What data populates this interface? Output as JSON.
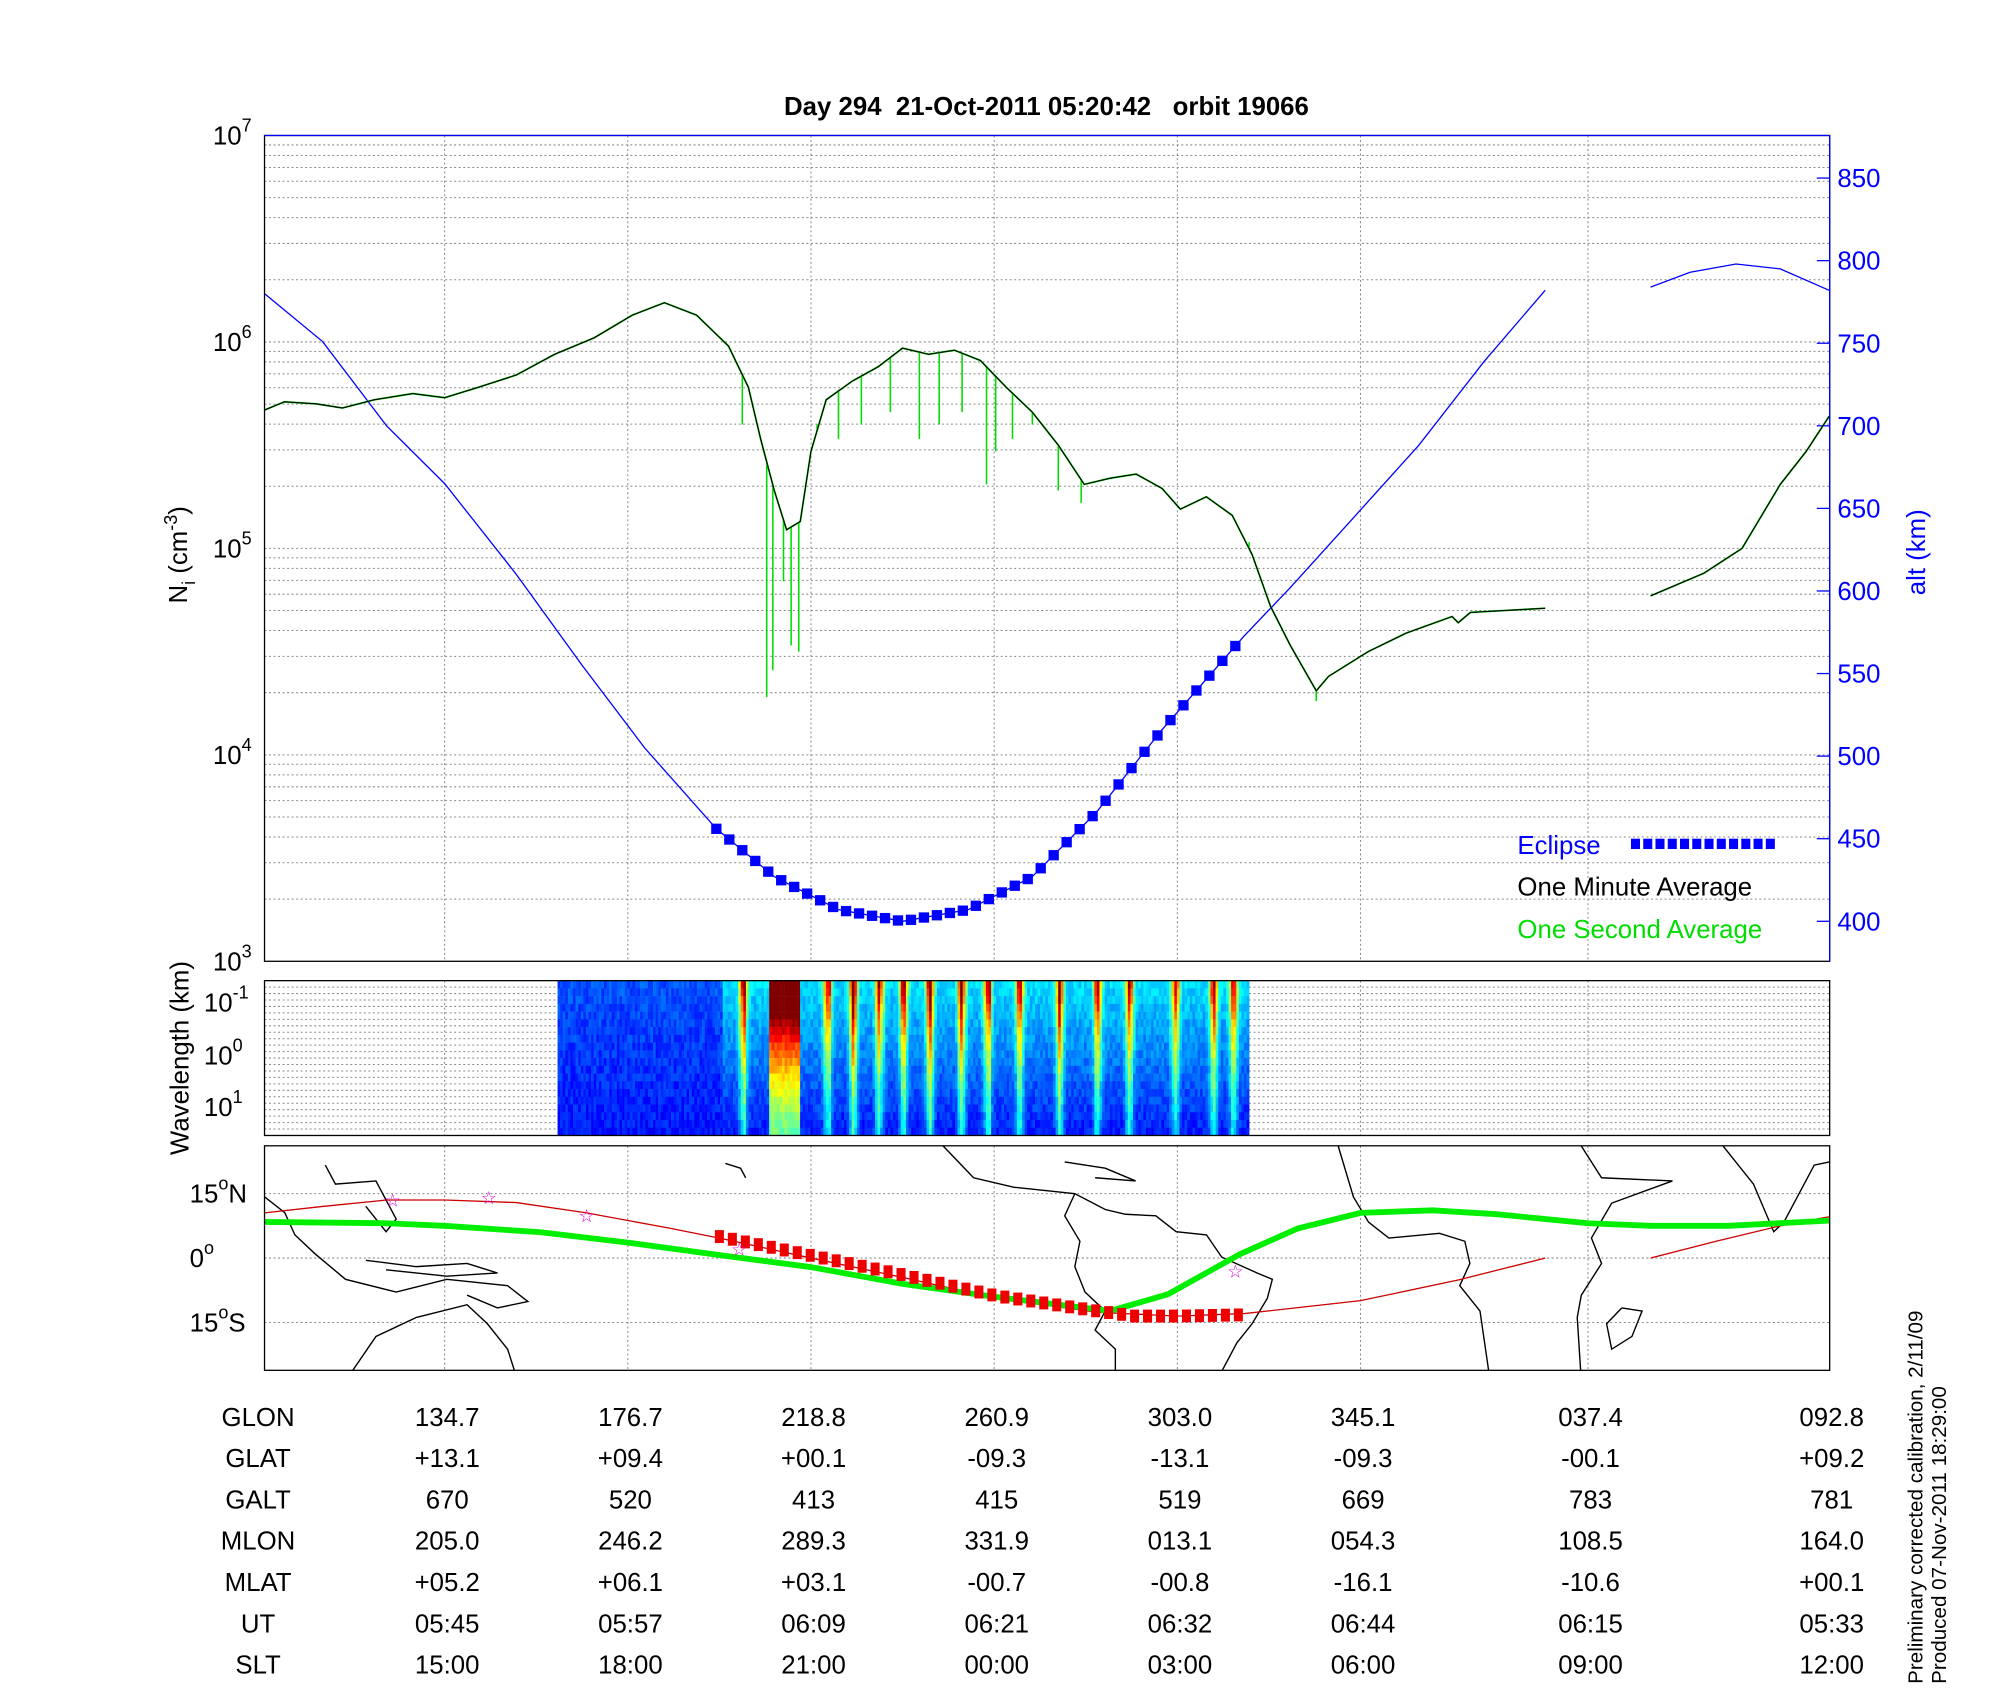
{
  "chart_data": [
    {
      "type": "line",
      "title": "Day 294  21-Oct-2011 05:20:42   orbit 19066",
      "ylabel": "N_i (cm^-3)",
      "ylabel_main": "N",
      "ylabel_sub": "i",
      "ylabel_unit": " (cm",
      "ylabel_exp": "-3",
      "ylabel_close": ")",
      "y2label": "alt (km)",
      "xunits": "minutes from panel start",
      "xlim": [
        0,
        102.5
      ],
      "ylim_log10": [
        3,
        7
      ],
      "y2lim": [
        376,
        876
      ],
      "yticks": [
        {
          "base": "10",
          "exp": "3",
          "v": 3
        },
        {
          "base": "10",
          "exp": "4",
          "v": 4
        },
        {
          "base": "10",
          "exp": "5",
          "v": 5
        },
        {
          "base": "10",
          "exp": "6",
          "v": 6
        },
        {
          "base": "10",
          "exp": "7",
          "v": 7
        }
      ],
      "y2ticks": [
        "400",
        "450",
        "500",
        "550",
        "600",
        "650",
        "700",
        "750",
        "800",
        "850"
      ],
      "xgrid_minutes": [
        11.8,
        23.8,
        35.8,
        47.8,
        59.8,
        71.8,
        86.7
      ],
      "legend": {
        "placement": "bottom-right",
        "eclipse": "Eclipse",
        "minute": "One Minute Average",
        "second": "One Second Average"
      },
      "colors": {
        "minute": "#000000",
        "second": "#00dd00",
        "altitude": "#0000ff",
        "eclipse": "#0000ff"
      },
      "series": [
        {
          "name": "One Minute Average",
          "log10_Ni": [
            [
              [
                0,
                5.67
              ],
              [
                1.3,
                5.71
              ],
              [
                3.4,
                5.7
              ],
              [
                5.1,
                5.68
              ],
              [
                7.2,
                5.72
              ],
              [
                9.7,
                5.75
              ],
              [
                11.8,
                5.73
              ],
              [
                14.0,
                5.78
              ],
              [
                16.5,
                5.84
              ],
              [
                19.0,
                5.94
              ],
              [
                21.6,
                6.02
              ],
              [
                24.1,
                6.13
              ],
              [
                26.2,
                6.19
              ],
              [
                28.3,
                6.13
              ],
              [
                30.4,
                5.98
              ],
              [
                31.7,
                5.78
              ],
              [
                32.5,
                5.53
              ],
              [
                33.4,
                5.28
              ],
              [
                34.2,
                5.09
              ],
              [
                35.1,
                5.13
              ],
              [
                35.8,
                5.47
              ],
              [
                36.8,
                5.72
              ],
              [
                38.5,
                5.81
              ],
              [
                40.2,
                5.88
              ],
              [
                41.8,
                5.97
              ],
              [
                43.5,
                5.94
              ],
              [
                45.2,
                5.96
              ],
              [
                46.9,
                5.91
              ],
              [
                48.6,
                5.78
              ],
              [
                50.3,
                5.66
              ],
              [
                52.0,
                5.5
              ],
              [
                53.7,
                5.31
              ],
              [
                55.4,
                5.34
              ],
              [
                57.1,
                5.36
              ],
              [
                58.8,
                5.29
              ],
              [
                60.0,
                5.19
              ],
              [
                61.7,
                5.25
              ],
              [
                63.4,
                5.16
              ],
              [
                64.7,
                4.97
              ],
              [
                65.9,
                4.72
              ],
              [
                67.2,
                4.53
              ],
              [
                68.9,
                4.31
              ],
              [
                69.7,
                4.38
              ],
              [
                72.3,
                4.5
              ],
              [
                74.8,
                4.59
              ],
              [
                77.8,
                4.67
              ],
              [
                78.2,
                4.64
              ],
              [
                79.0,
                4.69
              ],
              [
                83.9,
                4.71
              ]
            ],
            [
              [
                90.8,
                4.77
              ],
              [
                94.3,
                4.88
              ],
              [
                96.8,
                5.0
              ],
              [
                99.3,
                5.31
              ],
              [
                101.0,
                5.47
              ],
              [
                102.5,
                5.64
              ]
            ]
          ]
        },
        {
          "name": "One Second Average",
          "spikes_log10_min": [
            [
              31.3,
              5.6
            ],
            [
              32.9,
              4.28
            ],
            [
              33.3,
              4.41
            ],
            [
              34.0,
              4.84
            ],
            [
              34.5,
              4.53
            ],
            [
              35.0,
              4.5
            ],
            [
              36.2,
              5.6
            ],
            [
              37.6,
              5.53
            ],
            [
              39.1,
              5.6
            ],
            [
              41.0,
              5.66
            ],
            [
              42.9,
              5.53
            ],
            [
              44.2,
              5.6
            ],
            [
              45.7,
              5.66
            ],
            [
              47.3,
              5.31
            ],
            [
              47.9,
              5.47
            ],
            [
              49.0,
              5.53
            ],
            [
              50.3,
              5.6
            ],
            [
              52.0,
              5.28
            ],
            [
              53.5,
              5.22
            ],
            [
              64.5,
              5.03
            ],
            [
              68.9,
              4.26
            ]
          ]
        },
        {
          "name": "Altitude",
          "alt_km": [
            [
              [
                0,
                780
              ],
              [
                3.8,
                751
              ],
              [
                8.0,
                700
              ],
              [
                11.8,
                665
              ],
              [
                16.5,
                610
              ],
              [
                20.8,
                555
              ],
              [
                24.9,
                505
              ],
              [
                29.6,
                456
              ],
              [
                33.4,
                427
              ],
              [
                37.6,
                407
              ],
              [
                41.8,
                400
              ],
              [
                46.1,
                407
              ],
              [
                50.3,
                427
              ],
              [
                54.5,
                466
              ],
              [
                58.8,
                516
              ],
              [
                64.2,
                573
              ],
              [
                67.2,
                602
              ],
              [
                71.4,
                645
              ],
              [
                75.6,
                688
              ],
              [
                79.9,
                739
              ],
              [
                83.9,
                782
              ]
            ],
            [
              [
                90.8,
                784
              ],
              [
                93.4,
                793
              ],
              [
                96.4,
                798
              ],
              [
                99.3,
                795
              ],
              [
                102.5,
                782
              ]
            ]
          ]
        },
        {
          "name": "Eclipse",
          "minutes_range": [
            29.6,
            64.2
          ]
        }
      ]
    },
    {
      "type": "heatmap",
      "ylabel": "Wavelength (km)",
      "yticks": [
        {
          "base": "10",
          "exp": "-1"
        },
        {
          "base": "10",
          "exp": "0"
        },
        {
          "base": "10",
          "exp": "1"
        }
      ],
      "data_minutes_range": [
        19.2,
        64.5
      ],
      "bright_stripes_minutes": [
        31.3,
        33.4,
        34.4,
        36.8,
        38.5,
        40.2,
        41.8,
        43.5,
        45.6,
        47.3,
        49.4,
        52.0,
        54.5,
        56.6,
        59.6,
        62.1,
        63.4
      ],
      "strongest_stripe_minutes": [
        33.0,
        35.0
      ]
    },
    {
      "type": "line",
      "name": "ground track map",
      "yticks": [
        {
          "v": 15,
          "label": "15",
          "suffix": "N"
        },
        {
          "v": 0,
          "label": "0",
          "suffix": ""
        },
        {
          "v": -15,
          "label": "15",
          "suffix": "S"
        }
      ],
      "colors": {
        "track": "#cc0000",
        "magnetic_equator": "#00ee00",
        "eclipse": "#ee0000",
        "stars": "#dd00dd"
      },
      "track_lat": [
        [
          [
            0,
            10.5
          ],
          [
            3.8,
            12.0
          ],
          [
            8.0,
            13.5
          ],
          [
            11.8,
            13.5
          ],
          [
            16.5,
            12.9
          ],
          [
            21.1,
            10.5
          ],
          [
            26.6,
            6.9
          ],
          [
            30.0,
            4.5
          ],
          [
            35.8,
            0
          ],
          [
            41.8,
            -4.5
          ],
          [
            47.8,
            -9.3
          ],
          [
            54.5,
            -12.6
          ],
          [
            59.8,
            -13.5
          ],
          [
            64.2,
            -12.9
          ],
          [
            71.8,
            -9.9
          ],
          [
            78.2,
            -5.1
          ],
          [
            83.9,
            0
          ]
        ],
        [
          [
            90.8,
            0
          ],
          [
            95.1,
            3.9
          ],
          [
            99.3,
            7.5
          ],
          [
            102.5,
            9.6
          ]
        ]
      ],
      "magnetic_equator_lat": [
        [
          0,
          8.4
        ],
        [
          8.0,
          8.1
        ],
        [
          11.8,
          7.5
        ],
        [
          18.1,
          6.0
        ],
        [
          23.8,
          3.6
        ],
        [
          30.0,
          0.6
        ],
        [
          35.8,
          -2.1
        ],
        [
          41.8,
          -6.0
        ],
        [
          47.8,
          -9.0
        ],
        [
          55.4,
          -12.3
        ],
        [
          59.2,
          -8.4
        ],
        [
          63.9,
          0.9
        ],
        [
          67.7,
          6.9
        ],
        [
          71.8,
          10.5
        ],
        [
          76.5,
          11.1
        ],
        [
          80.7,
          10.2
        ],
        [
          86.7,
          8.1
        ],
        [
          90.8,
          7.5
        ],
        [
          95.9,
          7.5
        ],
        [
          102.5,
          8.7
        ]
      ],
      "eclipse_lat": [
        [
          29.8,
          5.0
        ],
        [
          35.8,
          0.6
        ],
        [
          41.8,
          -3.9
        ],
        [
          47.8,
          -8.7
        ],
        [
          54.5,
          -12.3
        ],
        [
          57.0,
          -13.5
        ],
        [
          60.0,
          -13.5
        ],
        [
          64.2,
          -13.2
        ]
      ],
      "stars": [
        [
          8.4,
          13.5
        ],
        [
          14.7,
          14.1
        ],
        [
          21.1,
          9.9
        ],
        [
          31.1,
          2.1
        ],
        [
          63.6,
          -3.0
        ]
      ]
    }
  ],
  "table": {
    "rows": [
      {
        "label": "GLON",
        "values": [
          "134.7",
          "176.7",
          "218.8",
          "260.9",
          "303.0",
          "345.1",
          "037.4",
          "092.8"
        ]
      },
      {
        "label": "GLAT",
        "values": [
          "+13.1",
          "+09.4",
          "+00.1",
          "-09.3",
          "-13.1",
          "-09.3",
          "-00.1",
          "+09.2"
        ]
      },
      {
        "label": "GALT",
        "values": [
          "670",
          "520",
          "413",
          "415",
          "519",
          "669",
          "783",
          "781"
        ]
      },
      {
        "label": "MLON",
        "values": [
          "205.0",
          "246.2",
          "289.3",
          "331.9",
          "013.1",
          "054.3",
          "108.5",
          "164.0"
        ]
      },
      {
        "label": "MLAT",
        "values": [
          "+05.2",
          "+06.1",
          "+03.1",
          "-00.7",
          "-00.8",
          "-16.1",
          "-10.6",
          "+00.1"
        ]
      },
      {
        "label": "UT",
        "values": [
          "05:45",
          "05:57",
          "06:09",
          "06:21",
          "06:32",
          "06:44",
          "06:15",
          "05:33"
        ]
      },
      {
        "label": "SLT",
        "values": [
          "15:00",
          "18:00",
          "21:00",
          "00:00",
          "03:00",
          "06:00",
          "09:00",
          "12:00"
        ]
      }
    ],
    "column_minutes": [
      11.8,
      23.8,
      35.8,
      47.8,
      59.8,
      71.8,
      86.7,
      102.5
    ]
  },
  "footer": {
    "line1": "Preliminary corrected calibration, 2/11/09",
    "line2": "Produced 07-Nov-2011 18:29:00"
  }
}
